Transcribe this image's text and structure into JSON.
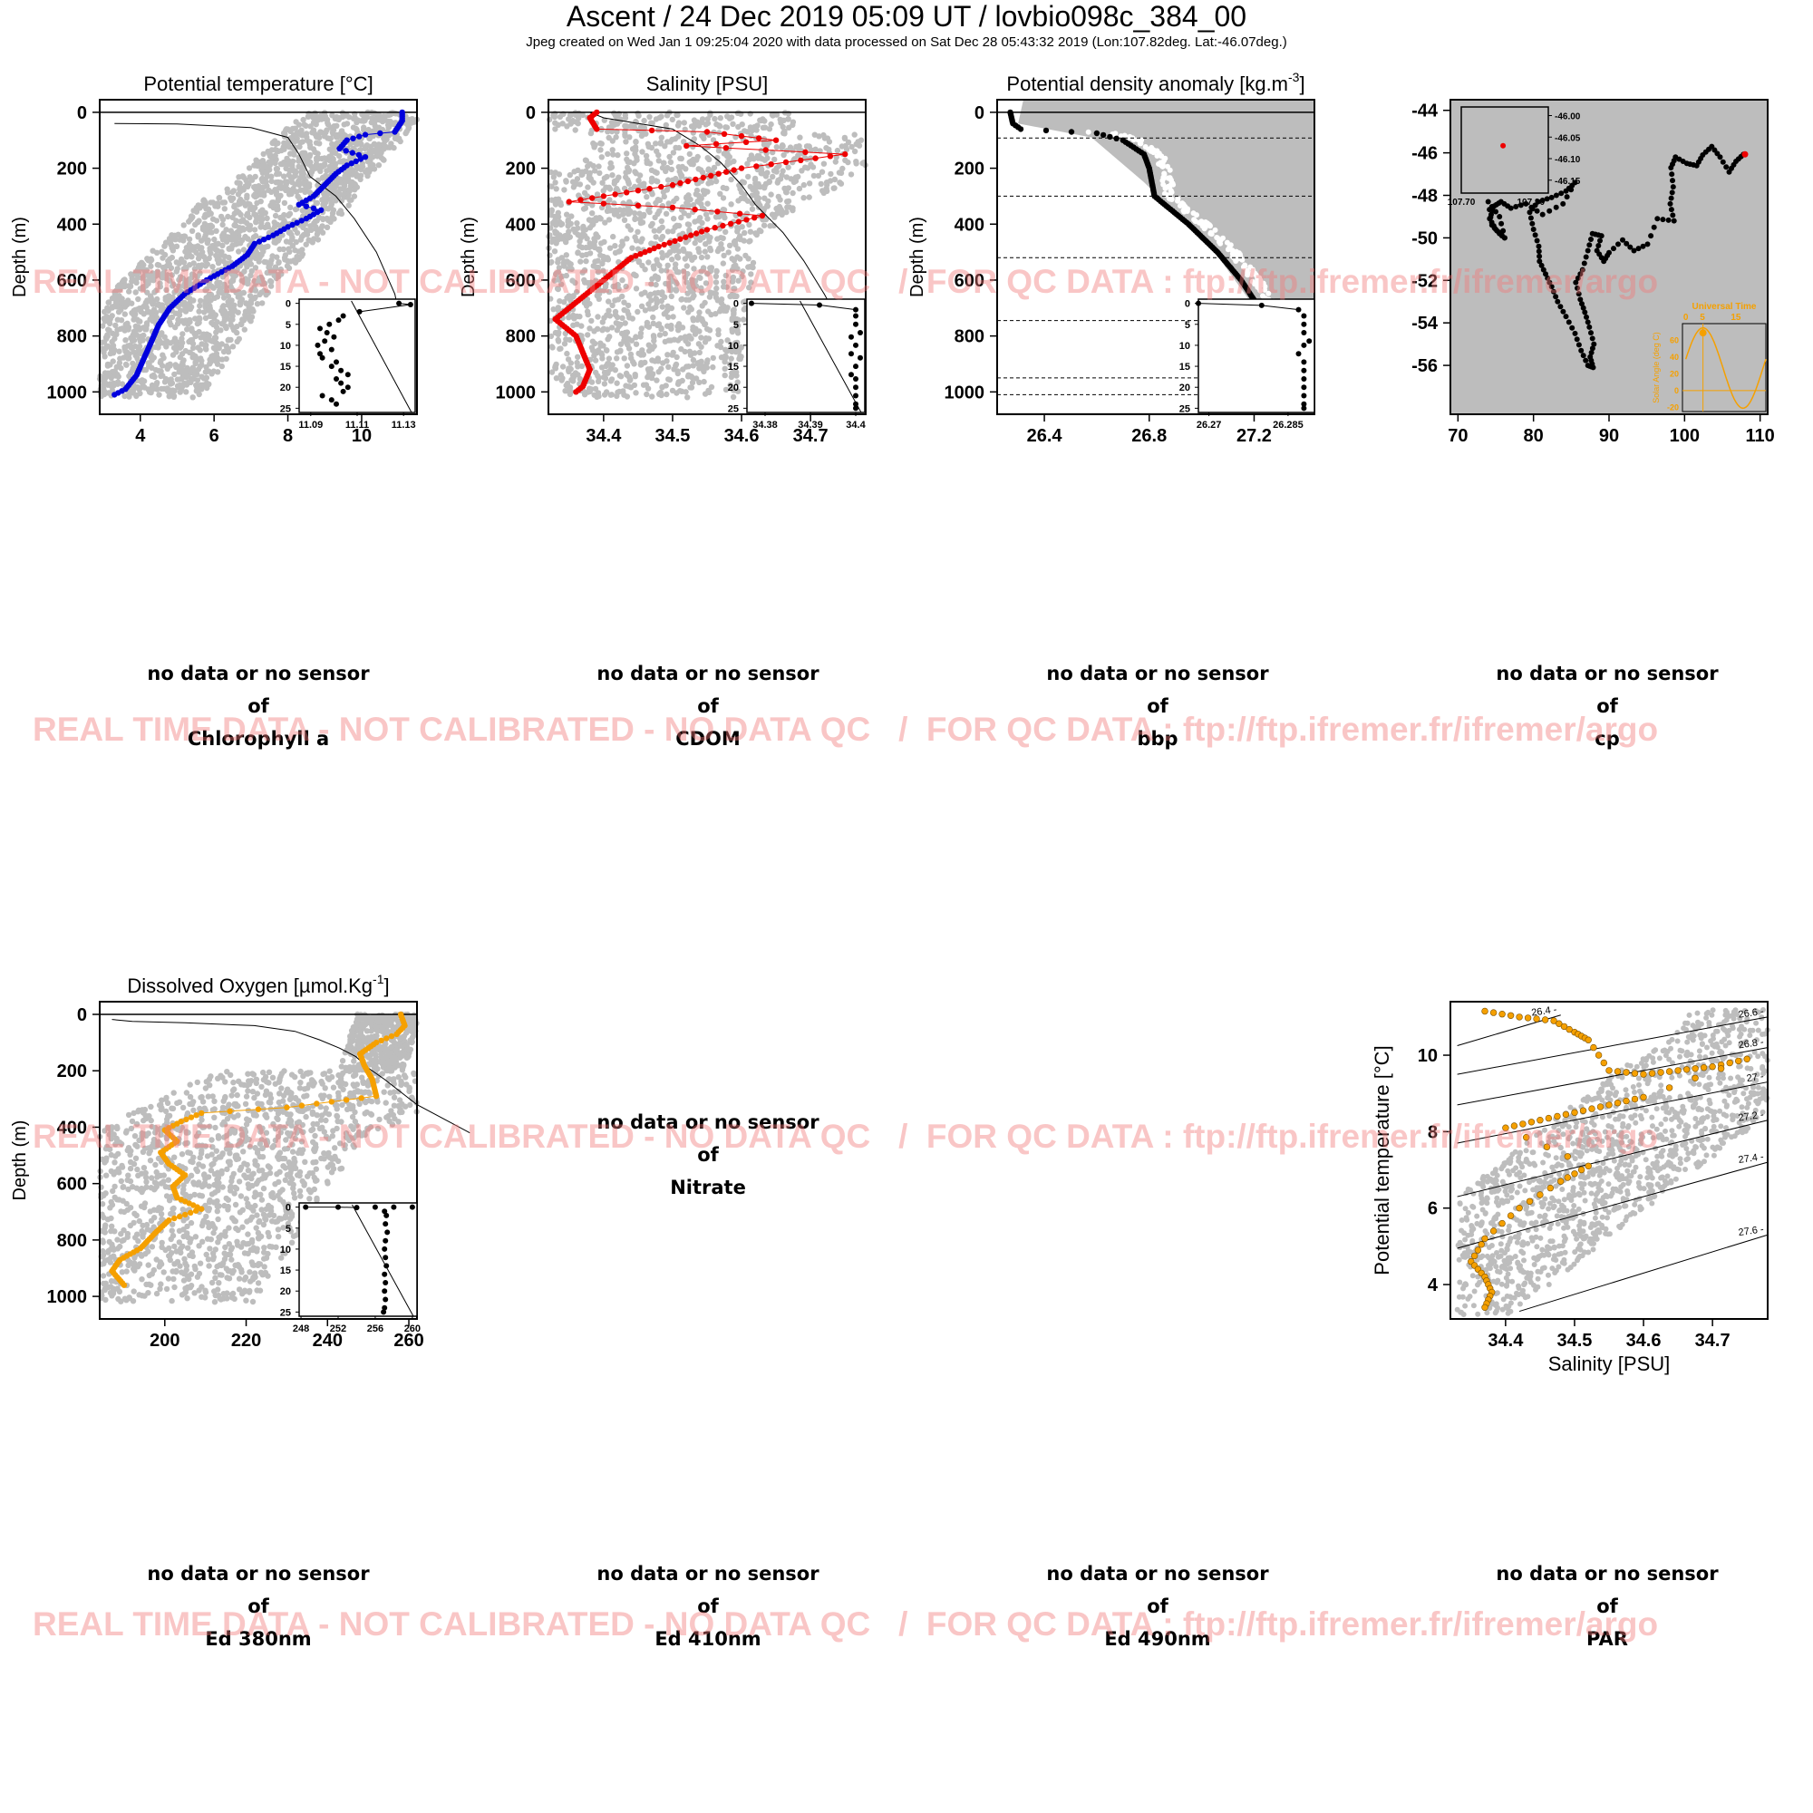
{
  "header": {
    "title": "Ascent / 24 Dec 2019 05:09 UT /  lovbio098c_384_00",
    "subtitle": "Jpeg created on Wed Jan  1 09:25:04 2020 with data processed on Sat Dec 28 05:43:32 2019 (Lon:107.82deg. Lat:-46.07deg.)"
  },
  "watermark": "REAL TIME DATA - NOT CALIBRATED - NO DATA QC   /  FOR QC DATA : ftp://ftp.ifremer.fr/ifremer/argo",
  "nodata": {
    "line1": "no data or no sensor",
    "line2": "of",
    "chl": "Chlorophyll a",
    "cdom": "CDOM",
    "bbp": "bbp",
    "cp": "cp",
    "nitrate": "Nitrate",
    "ed380": "Ed 380nm",
    "ed410": "Ed 410nm",
    "ed490": "Ed 490nm",
    "par": "PAR"
  },
  "colors": {
    "temperature": "#0000dd",
    "salinity": "#ee0000",
    "density": "#000000",
    "oxygen": "#f5a000",
    "climatology": "#bdbdbd",
    "watermark": "#f07878"
  },
  "chart_data": [
    {
      "id": "temp",
      "type": "scatter",
      "title": "Potential temperature [°C]",
      "ylabel": "Depth (m)",
      "xlim": [
        2.9,
        11.5
      ],
      "ylim": [
        1080,
        -45
      ],
      "xticks": [
        4,
        6,
        8,
        10
      ],
      "yticks": [
        0,
        200,
        400,
        600,
        800,
        1000
      ],
      "profile": [
        [
          11.1,
          0
        ],
        [
          11.1,
          30
        ],
        [
          10.9,
          70
        ],
        [
          10.1,
          80
        ],
        [
          9.6,
          100
        ],
        [
          9.4,
          130
        ],
        [
          10.1,
          160
        ],
        [
          9.6,
          190
        ],
        [
          9.3,
          220
        ],
        [
          9.0,
          260
        ],
        [
          8.7,
          300
        ],
        [
          8.3,
          330
        ],
        [
          8.9,
          350
        ],
        [
          8.5,
          380
        ],
        [
          8.0,
          410
        ],
        [
          7.6,
          440
        ],
        [
          7.1,
          470
        ],
        [
          6.9,
          510
        ],
        [
          6.5,
          550
        ],
        [
          5.8,
          600
        ],
        [
          5.2,
          650
        ],
        [
          4.8,
          700
        ],
        [
          4.5,
          760
        ],
        [
          4.3,
          820
        ],
        [
          4.1,
          880
        ],
        [
          3.9,
          940
        ],
        [
          3.6,
          990
        ],
        [
          3.3,
          1010
        ]
      ],
      "inset": {
        "xlim": [
          11.085,
          11.135
        ],
        "ylim": [
          26,
          -1
        ],
        "xticks": [
          11.09,
          11.11,
          11.13
        ],
        "yticks": [
          0,
          5,
          10,
          15,
          20,
          25
        ],
        "points": [
          [
            11.128,
            0
          ],
          [
            11.133,
            0.3
          ],
          [
            11.111,
            2
          ],
          [
            11.104,
            3
          ],
          [
            11.102,
            4
          ],
          [
            11.098,
            5
          ],
          [
            11.094,
            6
          ],
          [
            11.097,
            7
          ],
          [
            11.1,
            8
          ],
          [
            11.096,
            9
          ],
          [
            11.093,
            10
          ],
          [
            11.099,
            11
          ],
          [
            11.094,
            12
          ],
          [
            11.095,
            13
          ],
          [
            11.101,
            14
          ],
          [
            11.099,
            15
          ],
          [
            11.103,
            16
          ],
          [
            11.106,
            17
          ],
          [
            11.101,
            18
          ],
          [
            11.103,
            19
          ],
          [
            11.106,
            20
          ],
          [
            11.104,
            21
          ],
          [
            11.095,
            22
          ],
          [
            11.099,
            23
          ],
          [
            11.101,
            24
          ]
        ]
      }
    },
    {
      "id": "sal",
      "type": "scatter",
      "title": "Salinity [PSU]",
      "ylabel": "Depth (m)",
      "xlim": [
        34.32,
        34.78
      ],
      "ylim": [
        1080,
        -45
      ],
      "xticks": [
        34.4,
        34.5,
        34.6,
        34.7
      ],
      "yticks": [
        0,
        200,
        400,
        600,
        800,
        1000
      ],
      "profile": [
        [
          34.39,
          0
        ],
        [
          34.38,
          20
        ],
        [
          34.39,
          60
        ],
        [
          34.55,
          70
        ],
        [
          34.65,
          100
        ],
        [
          34.52,
          120
        ],
        [
          34.75,
          150
        ],
        [
          34.6,
          200
        ],
        [
          34.5,
          260
        ],
        [
          34.35,
          320
        ],
        [
          34.5,
          340
        ],
        [
          34.63,
          370
        ],
        [
          34.55,
          420
        ],
        [
          34.48,
          480
        ],
        [
          34.44,
          520
        ],
        [
          34.42,
          560
        ],
        [
          34.39,
          620
        ],
        [
          34.36,
          680
        ],
        [
          34.33,
          740
        ],
        [
          34.36,
          800
        ],
        [
          34.37,
          860
        ],
        [
          34.38,
          920
        ],
        [
          34.37,
          980
        ],
        [
          34.36,
          1000
        ]
      ],
      "inset": {
        "xlim": [
          34.376,
          34.402
        ],
        "ylim": [
          26,
          -1
        ],
        "xticks": [
          34.38,
          34.39,
          34.4
        ],
        "yticks": [
          0,
          5,
          10,
          15,
          20,
          25
        ],
        "points": [
          [
            34.377,
            0
          ],
          [
            34.392,
            0.4
          ],
          [
            34.4,
            1.5
          ],
          [
            34.4,
            3
          ],
          [
            34.4,
            5
          ],
          [
            34.401,
            7
          ],
          [
            34.399,
            8
          ],
          [
            34.4,
            10
          ],
          [
            34.399,
            12
          ],
          [
            34.401,
            13
          ],
          [
            34.4,
            15
          ],
          [
            34.399,
            17
          ],
          [
            34.4,
            18
          ],
          [
            34.4,
            20
          ],
          [
            34.4,
            22
          ],
          [
            34.4,
            24
          ],
          [
            34.4,
            25
          ]
        ]
      }
    },
    {
      "id": "dens",
      "type": "scatter",
      "title": "Potential density anomaly [kg.m^-3]",
      "ylabel": "Depth (m)",
      "xlim": [
        26.22,
        27.43
      ],
      "ylim": [
        1080,
        -45
      ],
      "xticks": [
        26.4,
        26.8,
        27.2
      ],
      "yticks": [
        0,
        200,
        400,
        600,
        800,
        1000
      ],
      "hlines": [
        92,
        300,
        520,
        745,
        950,
        1010
      ],
      "profile": [
        [
          26.27,
          0
        ],
        [
          26.28,
          40
        ],
        [
          26.31,
          60
        ],
        [
          26.6,
          75
        ],
        [
          26.7,
          100
        ],
        [
          26.78,
          150
        ],
        [
          26.8,
          200
        ],
        [
          26.82,
          300
        ],
        [
          26.95,
          400
        ],
        [
          27.06,
          500
        ],
        [
          27.15,
          600
        ],
        [
          27.22,
          700
        ],
        [
          27.28,
          800
        ],
        [
          27.32,
          900
        ],
        [
          27.35,
          980
        ],
        [
          27.36,
          1010
        ]
      ],
      "inset": {
        "xlim": [
          26.268,
          26.29
        ],
        "ylim": [
          26,
          -1
        ],
        "xticks": [
          26.27,
          26.285
        ],
        "yticks": [
          0,
          5,
          10,
          15,
          20,
          25
        ],
        "points": [
          [
            26.268,
            0
          ],
          [
            26.28,
            0.5
          ],
          [
            26.287,
            1.5
          ],
          [
            26.288,
            3
          ],
          [
            26.288,
            5
          ],
          [
            26.288,
            7
          ],
          [
            26.289,
            9
          ],
          [
            26.288,
            10
          ],
          [
            26.287,
            12
          ],
          [
            26.288,
            14
          ],
          [
            26.288,
            16
          ],
          [
            26.288,
            18
          ],
          [
            26.288,
            20
          ],
          [
            26.288,
            22
          ],
          [
            26.288,
            24
          ],
          [
            26.288,
            25
          ]
        ]
      }
    },
    {
      "id": "map",
      "type": "scatter",
      "xlim": [
        69,
        111
      ],
      "ylim": [
        -58.3,
        -43.5
      ],
      "xticks": [
        70,
        80,
        90,
        100,
        110
      ],
      "yticks": [
        -44,
        -46,
        -48,
        -50,
        -52,
        -54,
        -56
      ],
      "track": [
        [
          107.8,
          -46.07
        ],
        [
          106.8,
          -46.4
        ],
        [
          105.9,
          -46.9
        ],
        [
          104.7,
          -46.2
        ],
        [
          103.6,
          -45.7
        ],
        [
          102.4,
          -46.1
        ],
        [
          101.6,
          -46.6
        ],
        [
          100.3,
          -46.5
        ],
        [
          98.8,
          -46.2
        ],
        [
          98.2,
          -46.7
        ],
        [
          98.5,
          -47.6
        ],
        [
          98.1,
          -48.4
        ],
        [
          98.6,
          -49.2
        ],
        [
          96.4,
          -49.1
        ],
        [
          95.1,
          -50.3
        ],
        [
          93.3,
          -50.6
        ],
        [
          91.8,
          -50.1
        ],
        [
          90.0,
          -50.7
        ],
        [
          89.3,
          -51.1
        ],
        [
          88.4,
          -50.6
        ],
        [
          89.0,
          -49.9
        ],
        [
          87.8,
          -49.8
        ],
        [
          87.2,
          -50.6
        ],
        [
          86.5,
          -51.5
        ],
        [
          85.6,
          -52.1
        ],
        [
          86.2,
          -52.9
        ],
        [
          86.8,
          -53.5
        ],
        [
          87.4,
          -54.2
        ],
        [
          88.0,
          -55.0
        ],
        [
          87.5,
          -55.6
        ],
        [
          87.9,
          -56.1
        ],
        [
          87.2,
          -56.0
        ],
        [
          86.3,
          -55.3
        ],
        [
          85.5,
          -54.5
        ],
        [
          84.3,
          -53.7
        ],
        [
          83.2,
          -53.0
        ],
        [
          82.4,
          -52.3
        ],
        [
          81.6,
          -51.7
        ],
        [
          80.8,
          -51.1
        ],
        [
          80.7,
          -50.4
        ],
        [
          80.0,
          -49.6
        ],
        [
          79.5,
          -48.8
        ],
        [
          80.6,
          -48.3
        ],
        [
          82.4,
          -48.1
        ],
        [
          84.3,
          -47.8
        ],
        [
          85.5,
          -47.4
        ],
        [
          83.9,
          -48.4
        ],
        [
          81.2,
          -48.9
        ],
        [
          79.0,
          -48.4
        ],
        [
          77.0,
          -48.6
        ],
        [
          75.7,
          -48.3
        ],
        [
          74.8,
          -48.5
        ],
        [
          74.2,
          -49.1
        ],
        [
          75.0,
          -49.6
        ],
        [
          76.2,
          -50.0
        ],
        [
          75.5,
          -49.0
        ],
        [
          74.0,
          -48.3
        ],
        [
          74.5,
          -49.4
        ],
        [
          75.5,
          -49.8
        ],
        [
          76.5,
          -50.1
        ]
      ],
      "lastpos": [
        108.0,
        -46.07
      ],
      "inset": {
        "xlim": [
          107.7,
          107.95
        ],
        "ylim": [
          -46.18,
          -45.98
        ],
        "ytick_labels": [
          "-46.00",
          "-46.05",
          "-46.10",
          "-46.15"
        ],
        "yticks": [
          -46.0,
          -46.05,
          -46.1,
          -46.15
        ],
        "xticks": [
          107.7,
          107.9
        ],
        "xtick_labels": [
          "107.70",
          "107.90"
        ],
        "point": [
          107.82,
          -46.07
        ]
      },
      "sun_inset": {
        "title": "Universal Time",
        "ylabel": "Solar Angle (deg C)",
        "xticks": [
          0,
          5,
          15
        ],
        "yticks": [
          60,
          40,
          20,
          0,
          -20
        ],
        "xlim": [
          -1,
          24
        ],
        "ylim": [
          -25,
          80
        ],
        "marker": [
          5.15,
          69
        ]
      }
    },
    {
      "id": "oxy",
      "type": "scatter",
      "title": "Dissolved Oxygen [µmol.Kg^-1]",
      "ylabel": "Depth (m)",
      "xlim": [
        184,
        262
      ],
      "ylim": [
        1080,
        -45
      ],
      "xticks": [
        200,
        220,
        240,
        260
      ],
      "yticks": [
        0,
        200,
        400,
        600,
        800,
        1000
      ],
      "profile": [
        [
          258,
          0
        ],
        [
          259,
          40
        ],
        [
          257,
          70
        ],
        [
          252,
          100
        ],
        [
          248,
          140
        ],
        [
          249,
          180
        ],
        [
          251,
          230
        ],
        [
          252,
          290
        ],
        [
          230,
          330
        ],
        [
          209,
          350
        ],
        [
          204,
          380
        ],
        [
          200,
          410
        ],
        [
          203,
          450
        ],
        [
          199,
          490
        ],
        [
          201,
          530
        ],
        [
          205,
          570
        ],
        [
          202,
          610
        ],
        [
          203,
          650
        ],
        [
          209,
          690
        ],
        [
          201,
          730
        ],
        [
          198,
          770
        ],
        [
          194,
          830
        ],
        [
          189,
          870
        ],
        [
          187,
          910
        ],
        [
          190,
          960
        ]
      ],
      "inset": {
        "xlim": [
          247.8,
          260.5
        ],
        "ylim": [
          26,
          -1
        ],
        "xticks": [
          248,
          252,
          256,
          260
        ],
        "yticks": [
          0,
          5,
          10,
          15,
          20,
          25
        ],
        "points": [
          [
            248.5,
            0
          ],
          [
            252,
            0
          ],
          [
            254,
            0.1
          ],
          [
            256,
            0
          ],
          [
            258,
            0
          ],
          [
            260,
            0
          ],
          [
            257,
            1
          ],
          [
            257.2,
            2
          ],
          [
            257.1,
            4
          ],
          [
            257.3,
            6
          ],
          [
            257.1,
            8
          ],
          [
            257,
            10
          ],
          [
            257.1,
            12
          ],
          [
            257.2,
            14
          ],
          [
            257,
            16
          ],
          [
            257.1,
            18
          ],
          [
            257,
            20
          ],
          [
            257.1,
            22
          ],
          [
            257,
            24
          ],
          [
            256.9,
            25
          ]
        ]
      }
    },
    {
      "id": "ts",
      "type": "scatter",
      "xlabel": "Salinity [PSU]",
      "ylabel": "Potential temperature [°C]",
      "xlim": [
        34.32,
        34.78
      ],
      "ylim": [
        3.1,
        11.4
      ],
      "xticks": [
        34.4,
        34.5,
        34.6,
        34.7
      ],
      "yticks": [
        4,
        6,
        8,
        10
      ],
      "isopycnals": [
        "26.4",
        "26.6",
        "26.8",
        "27",
        "27.2",
        "27.4",
        "27.6"
      ],
      "profile": [
        [
          34.37,
          11.15
        ],
        [
          34.42,
          11.0
        ],
        [
          34.47,
          10.9
        ],
        [
          34.5,
          10.6
        ],
        [
          34.52,
          10.4
        ],
        [
          34.55,
          9.6
        ],
        [
          34.6,
          9.5
        ],
        [
          34.65,
          9.6
        ],
        [
          34.7,
          9.7
        ],
        [
          34.75,
          9.9
        ],
        [
          34.6,
          8.9
        ],
        [
          34.55,
          8.7
        ],
        [
          34.5,
          8.5
        ],
        [
          34.45,
          8.3
        ],
        [
          34.4,
          8.1
        ],
        [
          34.52,
          7.1
        ],
        [
          34.48,
          6.7
        ],
        [
          34.42,
          6.0
        ],
        [
          34.37,
          5.2
        ],
        [
          34.35,
          4.6
        ],
        [
          34.37,
          4.2
        ],
        [
          34.38,
          3.8
        ],
        [
          34.37,
          3.4
        ]
      ]
    }
  ]
}
